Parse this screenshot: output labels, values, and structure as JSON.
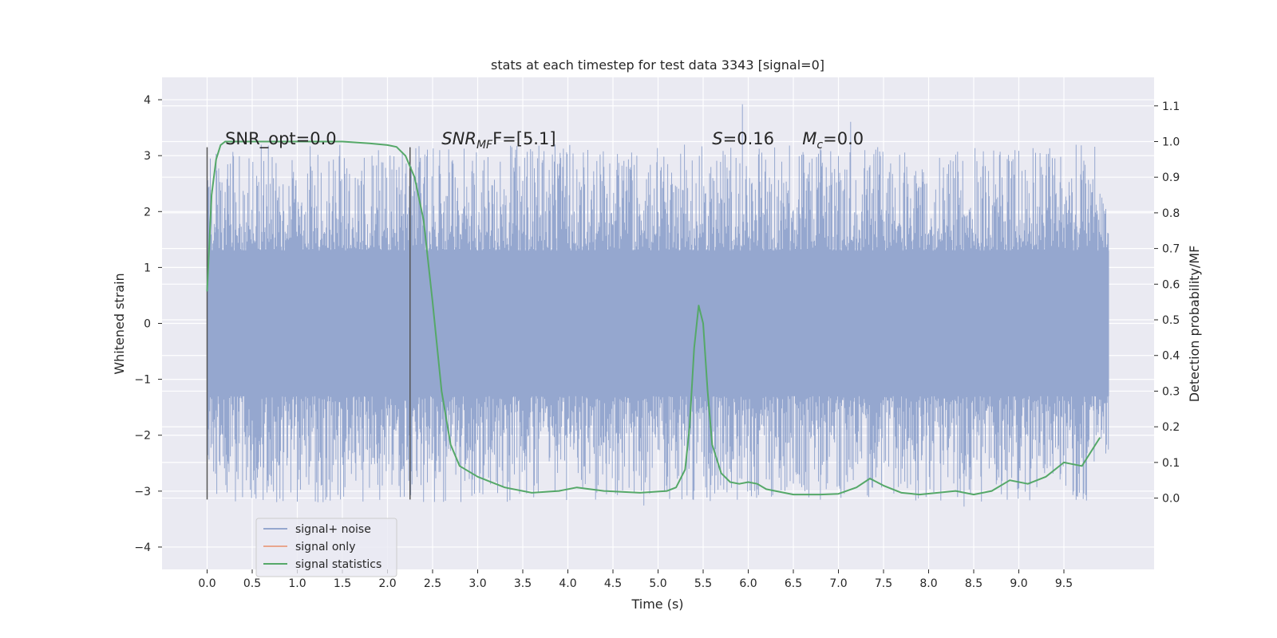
{
  "chart_data": {
    "type": "line",
    "title": "stats at each timestep for test data 3343 [signal=0]",
    "xlabel": "Time (s)",
    "ylabel": "Whitened strain",
    "y2label": "Detection probability/MF",
    "xlim": [
      -0.5,
      10.5
    ],
    "ylim": [
      -4.4,
      4.4
    ],
    "y2lim": [
      -0.2,
      1.18
    ],
    "xticks": [
      "0.0",
      "0.5",
      "1.0",
      "1.5",
      "2.0",
      "2.5",
      "3.0",
      "3.5",
      "4.0",
      "4.5",
      "5.0",
      "5.5",
      "6.0",
      "6.5",
      "7.0",
      "7.5",
      "8.0",
      "8.5",
      "9.0",
      "9.5"
    ],
    "yticks": [
      "−4",
      "−3",
      "−2",
      "−1",
      "0",
      "1",
      "2",
      "3",
      "4"
    ],
    "y2ticks": [
      "0.0",
      "0.1",
      "0.2",
      "0.3",
      "0.4",
      "0.5",
      "0.6",
      "0.7",
      "0.8",
      "0.9",
      "1.0",
      "1.1"
    ],
    "grid": true,
    "legend_position": "lower-left",
    "annotations": [
      {
        "text": "SNR_opt=0.0",
        "x": 0.2,
        "y": 3.2
      },
      {
        "base": "SNR",
        "sub": "MF",
        "tail": "F=[5.1]",
        "x": 2.6,
        "y": 3.2
      },
      {
        "base": "S",
        "tail": "=0.16",
        "x": 5.6,
        "y": 3.2
      },
      {
        "base": "M",
        "sub": "c",
        "tail": "=0.0",
        "x": 6.6,
        "y": 3.2
      }
    ],
    "markers": [
      0.0,
      2.25
    ],
    "series": [
      {
        "name": "signal+ noise",
        "color": "#95a7cf",
        "x_range": [
          0,
          10
        ],
        "envelope": {
          "core": 1.3,
          "max_abs": 4.0
        }
      },
      {
        "name": "signal only",
        "color": "#e9a68e",
        "values": []
      },
      {
        "name": "signal statistics",
        "color": "#55a868",
        "x": [
          0.0,
          0.05,
          0.1,
          0.15,
          0.2,
          0.3,
          0.5,
          1.0,
          1.5,
          1.8,
          2.0,
          2.1,
          2.2,
          2.3,
          2.4,
          2.5,
          2.6,
          2.7,
          2.8,
          3.0,
          3.3,
          3.6,
          3.9,
          4.1,
          4.4,
          4.8,
          5.1,
          5.2,
          5.3,
          5.35,
          5.4,
          5.45,
          5.5,
          5.55,
          5.6,
          5.7,
          5.8,
          5.9,
          6.0,
          6.1,
          6.2,
          6.5,
          6.8,
          7.0,
          7.2,
          7.35,
          7.5,
          7.7,
          7.9,
          8.1,
          8.3,
          8.5,
          8.7,
          8.9,
          9.1,
          9.3,
          9.5,
          9.7,
          9.9
        ],
        "y": [
          0.58,
          0.85,
          0.95,
          0.99,
          1.0,
          1.0,
          1.0,
          1.0,
          1.0,
          0.995,
          0.99,
          0.985,
          0.96,
          0.9,
          0.78,
          0.55,
          0.3,
          0.15,
          0.09,
          0.06,
          0.03,
          0.015,
          0.02,
          0.03,
          0.02,
          0.015,
          0.02,
          0.03,
          0.08,
          0.2,
          0.42,
          0.54,
          0.49,
          0.3,
          0.15,
          0.07,
          0.045,
          0.04,
          0.045,
          0.04,
          0.025,
          0.01,
          0.01,
          0.012,
          0.03,
          0.055,
          0.035,
          0.015,
          0.01,
          0.015,
          0.02,
          0.01,
          0.02,
          0.05,
          0.04,
          0.06,
          0.1,
          0.09,
          0.17
        ]
      }
    ]
  }
}
